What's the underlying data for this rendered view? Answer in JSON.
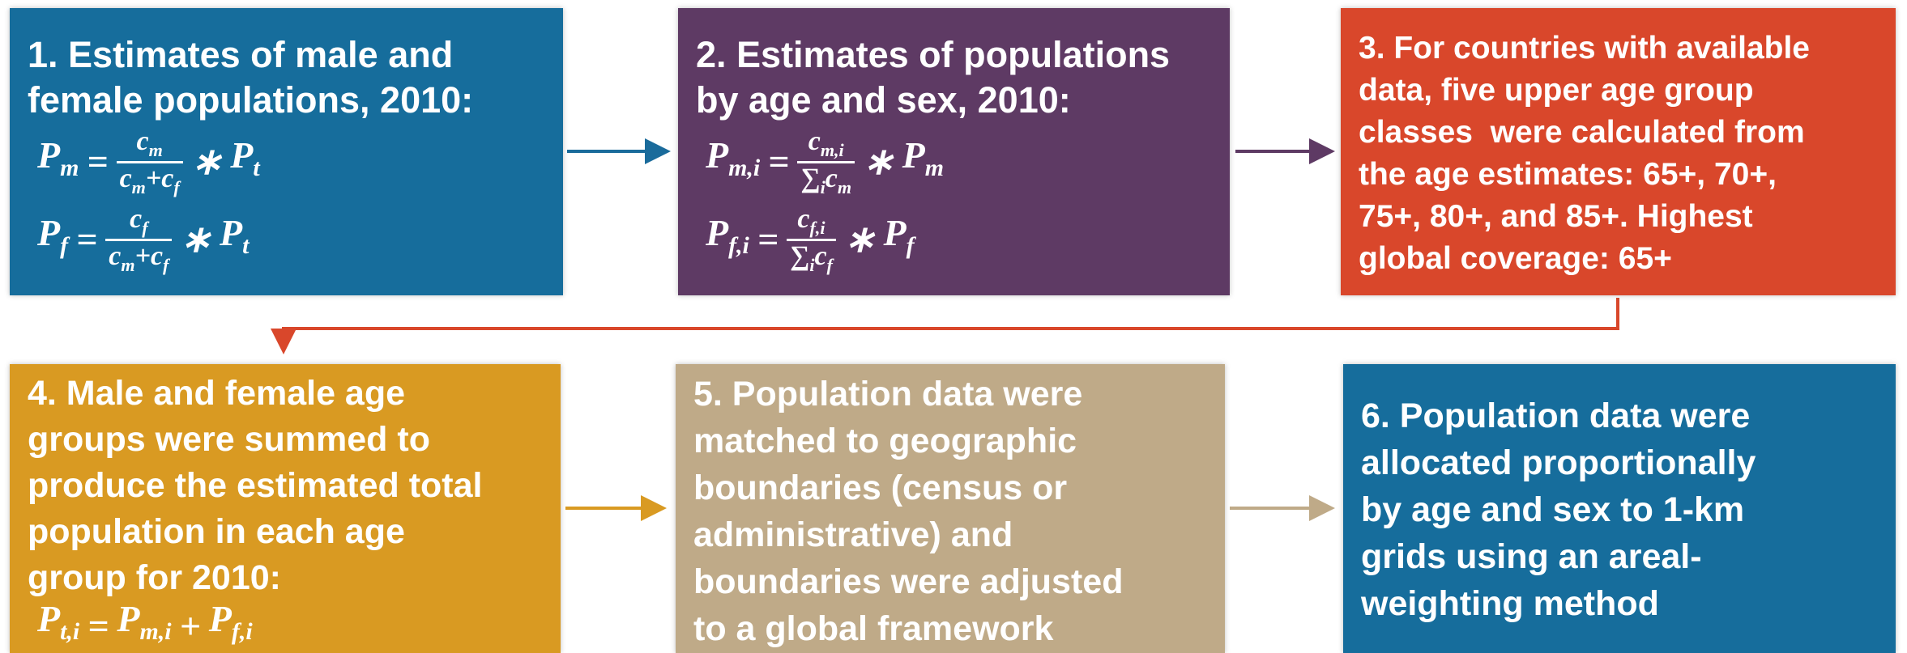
{
  "steps": [
    {
      "lines": [
        "1. Estimates of male and",
        "female populations, 2010:"
      ],
      "formulas": [
        {
          "lhs": [
            {
              "b": "P",
              "s": "m"
            }
          ],
          "eq": "=",
          "num": [
            {
              "b": "c",
              "s": "m"
            }
          ],
          "den": [
            {
              "b": "c",
              "s": "m"
            },
            "+",
            {
              "b": "c",
              "s": "f"
            }
          ],
          "rhs": [
            "∗",
            {
              "b": "P",
              "s": "t"
            }
          ]
        },
        {
          "lhs": [
            {
              "b": "P",
              "s": "f"
            }
          ],
          "eq": "=",
          "num": [
            {
              "b": "c",
              "s": "f"
            }
          ],
          "den": [
            {
              "b": "c",
              "s": "m"
            },
            "+",
            {
              "b": "c",
              "s": "f"
            }
          ],
          "rhs": [
            "∗",
            {
              "b": "P",
              "s": "t"
            }
          ]
        }
      ]
    },
    {
      "lines": [
        "2. Estimates of populations",
        "by age and sex, 2010:"
      ],
      "formulas": [
        {
          "lhs": [
            {
              "b": "P",
              "s": "m,i"
            }
          ],
          "eq": "=",
          "num": [
            {
              "b": "c",
              "s": "m,i"
            }
          ],
          "den": [
            {
              "b": "∑",
              "s": "i"
            },
            {
              "b": "c",
              "s": "m"
            }
          ],
          "rhs": [
            "∗",
            {
              "b": "P",
              "s": "m"
            }
          ]
        },
        {
          "lhs": [
            {
              "b": "P",
              "s": "f,i"
            }
          ],
          "eq": "=",
          "num": [
            {
              "b": "c",
              "s": "f,i"
            }
          ],
          "den": [
            {
              "b": "∑",
              "s": "i"
            },
            {
              "b": "c",
              "s": "f"
            }
          ],
          "rhs": [
            "∗",
            {
              "b": "P",
              "s": "f"
            }
          ]
        }
      ]
    },
    {
      "lines": [
        "3. For countries with available",
        "data, five upper age group",
        "classes  were calculated from",
        "the age estimates: 65+, 70+,",
        "75+, 80+, and 85+. Highest",
        "global coverage: 65+"
      ]
    },
    {
      "lines": [
        "4. Male and female age",
        "groups were summed to",
        "produce the estimated total",
        "population in each age",
        "group for 2010:"
      ],
      "formulas": [
        {
          "lhs": [
            {
              "b": "P",
              "s": "t,i"
            }
          ],
          "eq": "=",
          "rhs": [
            {
              "b": "P",
              "s": "m,i"
            },
            "+",
            {
              "b": "P",
              "s": "f,i"
            }
          ]
        }
      ]
    },
    {
      "lines": [
        "5. Population data were",
        "matched to geographic",
        "boundaries (census or",
        "administrative) and",
        "boundaries were adjusted",
        "to a global framework"
      ]
    },
    {
      "lines": [
        "6. Population data were",
        "allocated proportionally",
        "by age and sex to 1-km",
        "grids using an areal-",
        "weighting method"
      ]
    }
  ]
}
